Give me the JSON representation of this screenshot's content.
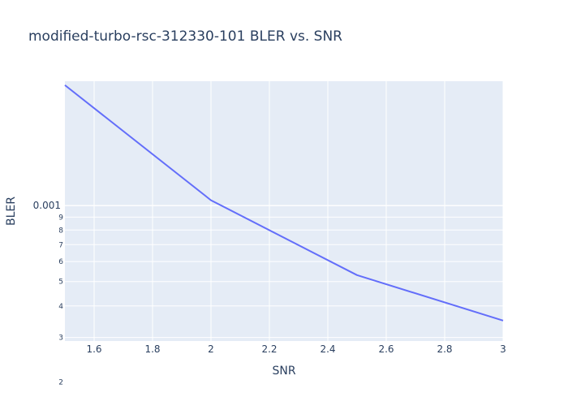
{
  "chart_data": {
    "type": "line",
    "title": "modified-turbo-rsc-312330-101 BLER vs. SNR",
    "xlabel": "SNR",
    "ylabel": "BLER",
    "x_ticks": [
      "1.6",
      "1.8",
      "2",
      "2.2",
      "2.4",
      "2.6",
      "2.8",
      "3"
    ],
    "y_ticks": [
      {
        "value": 0.0003,
        "label": "3",
        "minor": true
      },
      {
        "value": 0.0002,
        "label": "2",
        "minor": true
      },
      {
        "value": 0.001,
        "label": "0.001",
        "minor": false
      },
      {
        "value": 0.0009,
        "label": "9",
        "minor": true
      },
      {
        "value": 0.0008,
        "label": "8",
        "minor": true
      },
      {
        "value": 0.0007,
        "label": "7",
        "minor": true
      },
      {
        "value": 0.0006,
        "label": "6",
        "minor": true
      },
      {
        "value": 0.0005,
        "label": "5",
        "minor": true
      },
      {
        "value": 0.0004,
        "label": "4",
        "minor": true
      }
    ],
    "xlim": [
      1.5,
      3.0
    ],
    "yscale": "log",
    "grid": true,
    "series": [
      {
        "color": "#636efa",
        "points": [
          {
            "x": 1.5,
            "y": 0.003
          },
          {
            "x": 2.0,
            "y": 0.00105
          },
          {
            "x": 2.5,
            "y": 0.00053
          },
          {
            "x": 3.0,
            "y": 0.00035
          }
        ]
      }
    ],
    "colors": {
      "plot_bg": "#e5ecf6",
      "grid": "#ffffff",
      "text": "#2a3f5f"
    }
  }
}
